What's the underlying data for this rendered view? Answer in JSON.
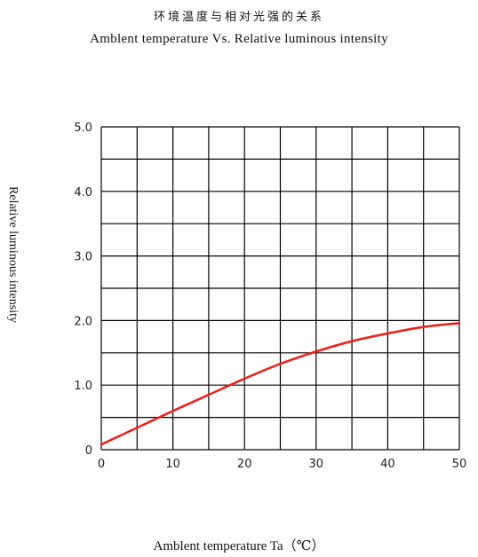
{
  "chart_data": {
    "type": "line",
    "title": "环境温度与相对光强的关系",
    "subtitle": "Amblent temperature  Vs.  Relative luminous intensity",
    "xlabel": "Amblent temperature Ta（℃）",
    "ylabel": "Relative luminous intensity",
    "xlim": [
      0,
      50
    ],
    "ylim": [
      0,
      5.0
    ],
    "x_ticks": [
      "0",
      "10",
      "20",
      "30",
      "40",
      "50"
    ],
    "y_ticks": [
      "0",
      "1.0",
      "2.0",
      "3.0",
      "4.0",
      "5.0"
    ],
    "grid": true,
    "series": [
      {
        "color": "#e8231e",
        "x": [
          0,
          5,
          10,
          15,
          20,
          25,
          30,
          35,
          40,
          45,
          50
        ],
        "y": [
          0.08,
          0.34,
          0.6,
          0.85,
          1.1,
          1.33,
          1.52,
          1.68,
          1.8,
          1.9,
          1.96
        ]
      }
    ]
  }
}
